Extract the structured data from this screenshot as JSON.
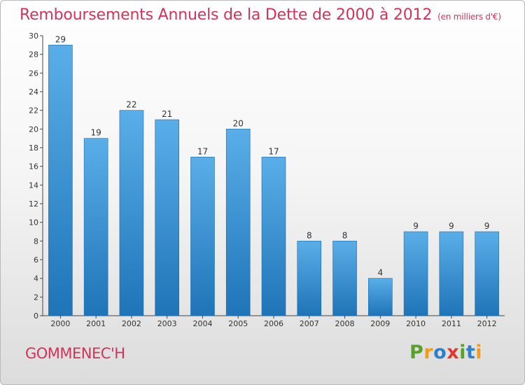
{
  "title": "Remboursements Annuels de la Dette de 2000 à 2012",
  "unit": "(en milliers d'€)",
  "commune": "GOMMENEC'H",
  "logo": {
    "letters": [
      "P",
      "r",
      "o",
      "x",
      "i",
      "t",
      "i"
    ],
    "colors": [
      "#5aa02c",
      "#f59a1a",
      "#2c7fc8",
      "#e03a2c",
      "#5aa02c",
      "#2c7fc8",
      "#f59a1a"
    ]
  },
  "colors": {
    "bar_light": "#5aaee8",
    "bar_dark": "#1f74b8",
    "title": "#d3335a"
  },
  "chart_data": {
    "type": "bar",
    "categories": [
      "2000",
      "2001",
      "2002",
      "2003",
      "2004",
      "2005",
      "2006",
      "2007",
      "2008",
      "2009",
      "2010",
      "2011",
      "2012"
    ],
    "values": [
      29,
      19,
      22,
      21,
      17,
      20,
      17,
      8,
      8,
      4,
      9,
      9,
      9
    ],
    "ylim": [
      0,
      30
    ],
    "yticks": [
      0,
      2,
      4,
      6,
      8,
      10,
      12,
      14,
      16,
      18,
      20,
      22,
      24,
      26,
      28,
      30
    ],
    "grid": false
  }
}
